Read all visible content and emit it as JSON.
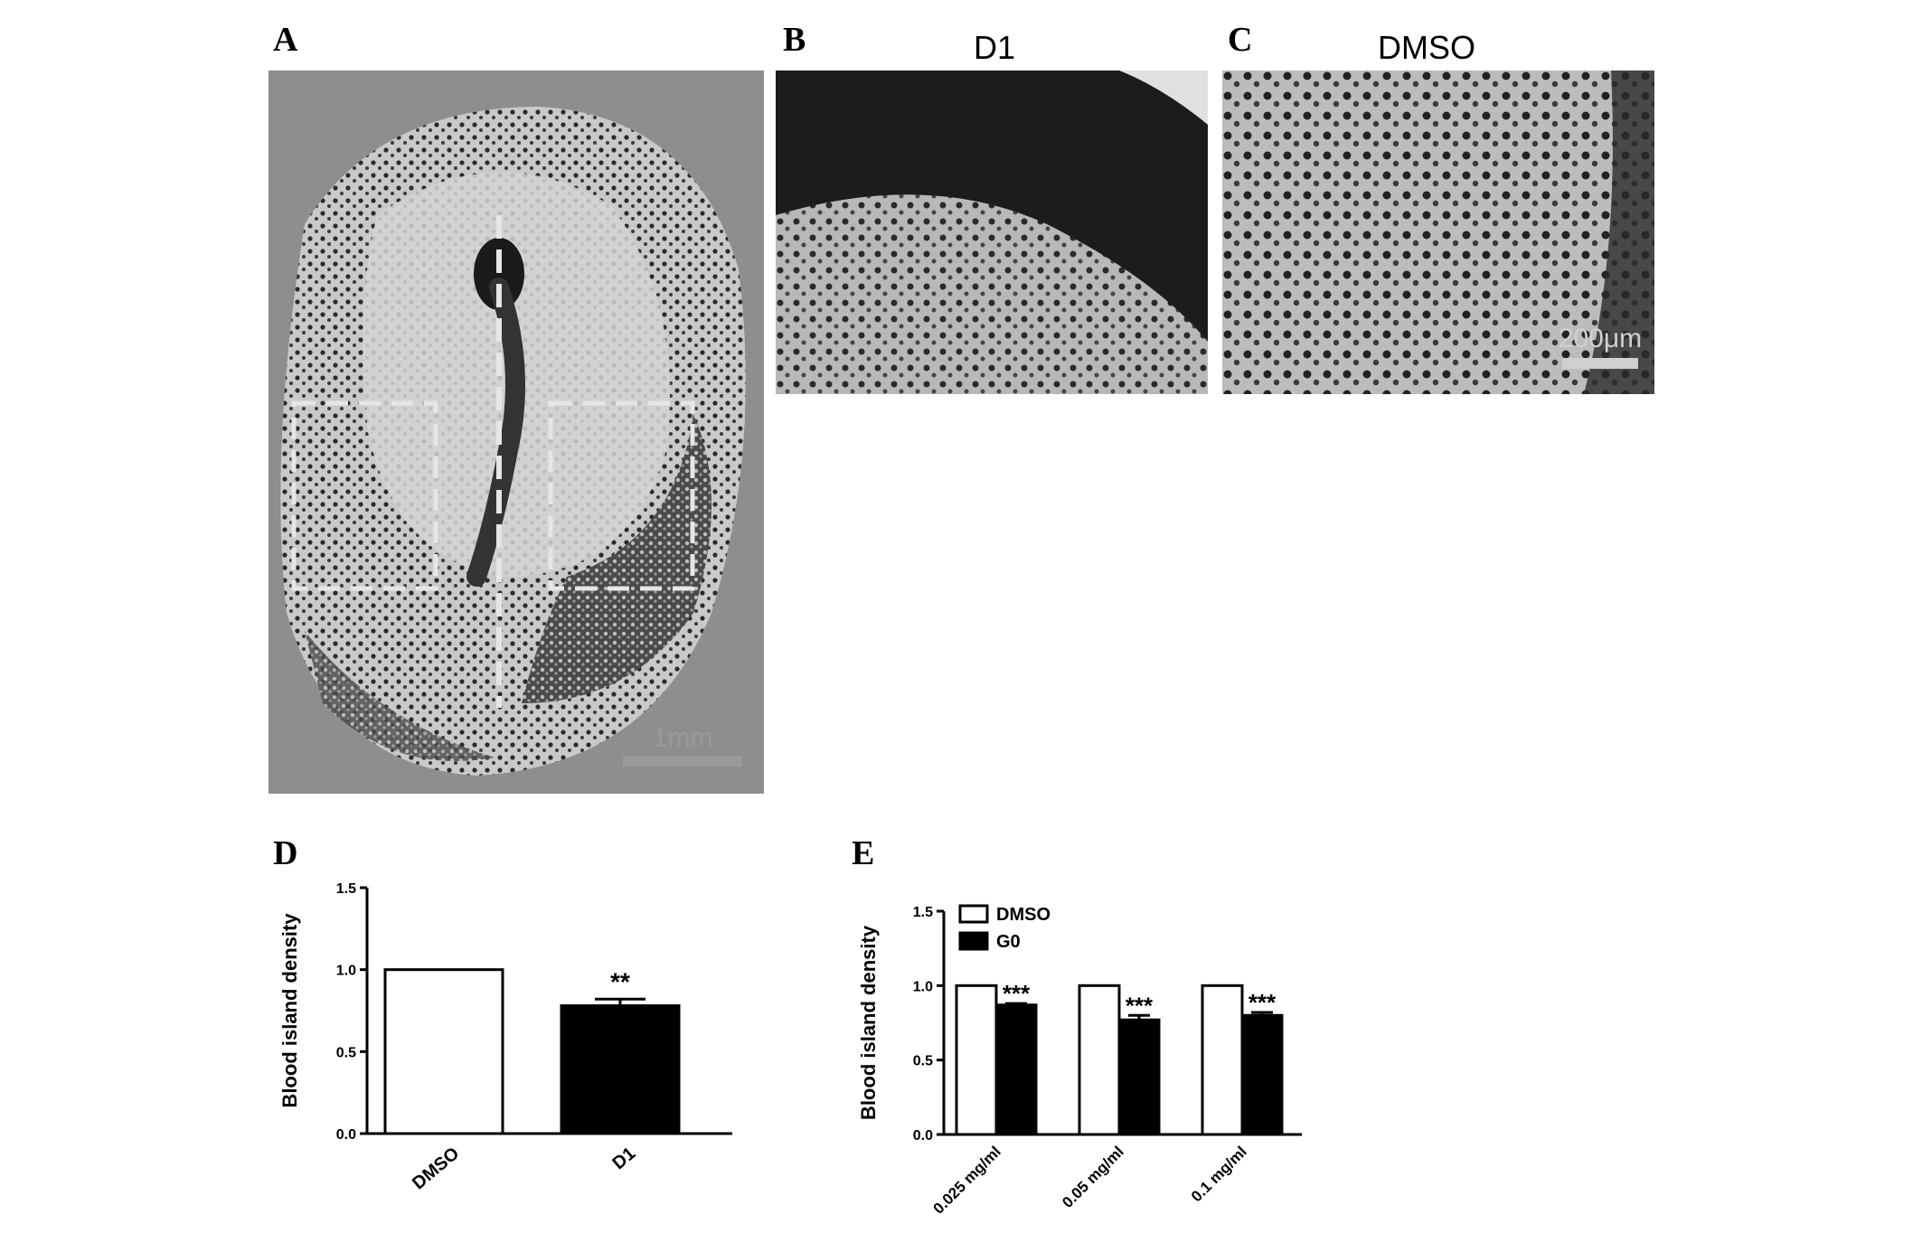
{
  "panels": {
    "a": {
      "letter": "A",
      "scale_bar": "1mm"
    },
    "b": {
      "letter": "B",
      "title": "D1"
    },
    "c": {
      "letter": "C",
      "title": "DMSO",
      "scale_bar": "200μm"
    },
    "d": {
      "letter": "D"
    },
    "e": {
      "letter": "E"
    }
  },
  "colors": {
    "dmso_fill": "#ffffff",
    "treated_fill": "#000000",
    "axis": "#000000"
  },
  "chart_data": [
    {
      "type": "bar",
      "panel": "D",
      "title": "",
      "xlabel": "",
      "ylabel": "Blood island density",
      "ylim": [
        0,
        1.5
      ],
      "yticks": [
        "0.0",
        "0.5",
        "1.0",
        "1.5"
      ],
      "categories": [
        "DMSO",
        "D1"
      ],
      "values": [
        1.0,
        0.78
      ],
      "errors": [
        0,
        0.04
      ],
      "significance": [
        "",
        "**"
      ]
    },
    {
      "type": "bar",
      "panel": "E",
      "title": "",
      "xlabel": "",
      "ylabel": "Blood island density",
      "ylim": [
        0,
        1.5
      ],
      "yticks": [
        "0.0",
        "0.5",
        "1.0",
        "1.5"
      ],
      "categories": [
        "0.025 mg/ml",
        "0.05 mg/ml",
        "0.1 mg/ml"
      ],
      "series": [
        {
          "name": "DMSO",
          "values": [
            1.0,
            1.0,
            1.0
          ],
          "errors": [
            0,
            0,
            0
          ]
        },
        {
          "name": "G0",
          "values": [
            0.87,
            0.77,
            0.8
          ],
          "errors": [
            0.01,
            0.03,
            0.02
          ]
        }
      ],
      "significance": [
        "***",
        "***",
        "***"
      ],
      "legend": "top-left"
    }
  ]
}
